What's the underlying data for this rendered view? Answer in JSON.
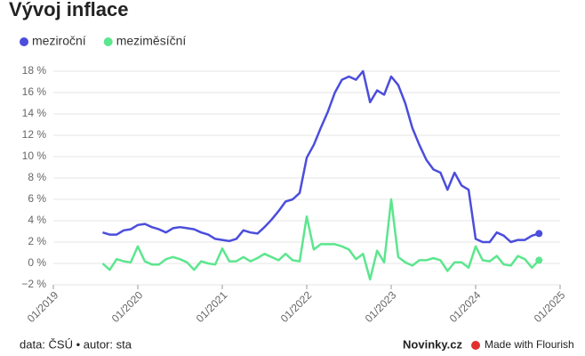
{
  "chart_data": {
    "type": "line",
    "title": "Vývoj inflace",
    "x": [
      "08/2019",
      "09/2019",
      "10/2019",
      "11/2019",
      "12/2019",
      "01/2020",
      "02/2020",
      "03/2020",
      "04/2020",
      "05/2020",
      "06/2020",
      "07/2020",
      "08/2020",
      "09/2020",
      "10/2020",
      "11/2020",
      "12/2020",
      "01/2021",
      "02/2021",
      "03/2021",
      "04/2021",
      "05/2021",
      "06/2021",
      "07/2021",
      "08/2021",
      "09/2021",
      "10/2021",
      "11/2021",
      "12/2021",
      "01/2022",
      "02/2022",
      "03/2022",
      "04/2022",
      "05/2022",
      "06/2022",
      "07/2022",
      "08/2022",
      "09/2022",
      "10/2022",
      "11/2022",
      "12/2022",
      "01/2023",
      "02/2023",
      "03/2023",
      "04/2023",
      "05/2023",
      "06/2023",
      "07/2023",
      "08/2023",
      "09/2023",
      "10/2023",
      "11/2023",
      "12/2023",
      "01/2024",
      "02/2024",
      "03/2024",
      "04/2024",
      "05/2024",
      "06/2024",
      "07/2024",
      "08/2024",
      "09/2024",
      "10/2024"
    ],
    "series": [
      {
        "name": "meziroční",
        "color": "#4b4ddc",
        "values": [
          2.9,
          2.7,
          2.7,
          3.1,
          3.2,
          3.6,
          3.7,
          3.4,
          3.2,
          2.9,
          3.3,
          3.4,
          3.3,
          3.2,
          2.9,
          2.7,
          2.3,
          2.2,
          2.1,
          2.3,
          3.1,
          2.9,
          2.8,
          3.4,
          4.1,
          4.9,
          5.8,
          6.0,
          6.6,
          9.9,
          11.1,
          12.7,
          14.2,
          16.0,
          17.2,
          17.5,
          17.2,
          18.0,
          15.1,
          16.2,
          15.8,
          17.5,
          16.7,
          15.0,
          12.7,
          11.1,
          9.7,
          8.8,
          8.5,
          6.9,
          8.5,
          7.3,
          6.9,
          2.3,
          2.0,
          2.0,
          2.9,
          2.6,
          2.0,
          2.2,
          2.2,
          2.6,
          2.8
        ]
      },
      {
        "name": "meziměsíční",
        "color": "#5ce68e",
        "values": [
          0.0,
          -0.6,
          0.4,
          0.2,
          0.1,
          1.6,
          0.2,
          -0.1,
          -0.1,
          0.4,
          0.6,
          0.4,
          0.1,
          -0.6,
          0.2,
          0.0,
          -0.1,
          1.4,
          0.2,
          0.2,
          0.6,
          0.2,
          0.5,
          0.9,
          0.6,
          0.3,
          0.9,
          0.3,
          0.2,
          4.4,
          1.3,
          1.8,
          1.8,
          1.8,
          1.6,
          1.3,
          0.4,
          0.9,
          -1.5,
          1.2,
          0.1,
          6.0,
          0.6,
          0.1,
          -0.2,
          0.3,
          0.3,
          0.5,
          0.3,
          -0.7,
          0.1,
          0.1,
          -0.4,
          1.6,
          0.3,
          0.2,
          0.7,
          -0.1,
          -0.2,
          0.7,
          0.4,
          -0.4,
          0.3
        ]
      }
    ],
    "xlim": [
      "01/2019",
      "01/2025"
    ],
    "xticks": [
      "01/2019",
      "01/2020",
      "01/2021",
      "01/2022",
      "01/2023",
      "01/2024",
      "01/2025"
    ],
    "ylim": [
      -2,
      18
    ],
    "yticks": [
      {
        "value": -2,
        "label": "−2 %"
      },
      {
        "value": 0,
        "label": "0 %"
      },
      {
        "value": 2,
        "label": "2 %"
      },
      {
        "value": 4,
        "label": "4 %"
      },
      {
        "value": 6,
        "label": "6 %"
      },
      {
        "value": 8,
        "label": "8 %"
      },
      {
        "value": 10,
        "label": "10 %"
      },
      {
        "value": 12,
        "label": "12 %"
      },
      {
        "value": 14,
        "label": "14 %"
      },
      {
        "value": 16,
        "label": "16 %"
      },
      {
        "value": 18,
        "label": "18 %"
      }
    ],
    "grid": true,
    "legend": "top-left",
    "source": "data: ČSÚ • autor: sta",
    "brand": "Novinky.cz",
    "credit": "Made with Flourish"
  }
}
